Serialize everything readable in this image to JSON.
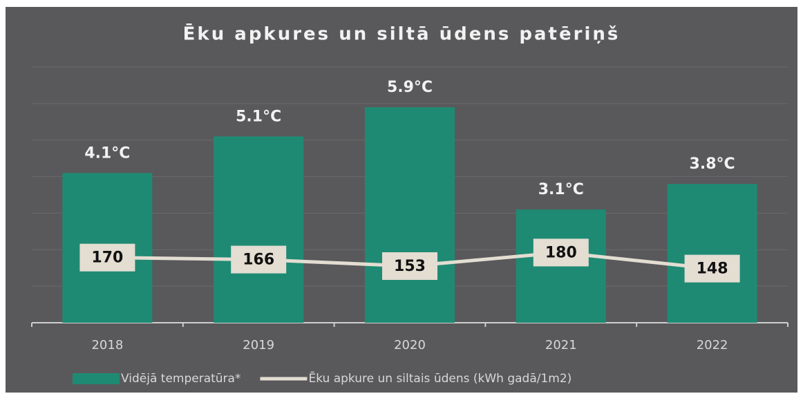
{
  "chart_data": {
    "type": "bar-line",
    "title": "Ēku apkures un siltā ūdens patēriņš",
    "categories": [
      "2018",
      "2019",
      "2020",
      "2021",
      "2022"
    ],
    "series": [
      {
        "name": "Vidējā temperatūra*",
        "type": "bar",
        "color": "#1f8a73",
        "axis": "y",
        "values": [
          4.1,
          5.1,
          5.9,
          3.1,
          3.8
        ],
        "value_labels": [
          "4.1°C",
          "5.1°C",
          "5.9°C",
          "3.1°C",
          "3.8°C"
        ]
      },
      {
        "name": "Ēku apkure un siltais ūdens (kWh gadā/1m2)",
        "type": "line",
        "color": "#e3ddd2",
        "axis": "y2",
        "values": [
          170,
          166,
          153,
          180,
          148
        ]
      }
    ],
    "ylim": [
      0,
      7
    ],
    "yticks": [
      0,
      1,
      2,
      3,
      4,
      5,
      6,
      7
    ],
    "y2lim": [
      40,
      550
    ],
    "grid": true,
    "legend": "bottom"
  }
}
